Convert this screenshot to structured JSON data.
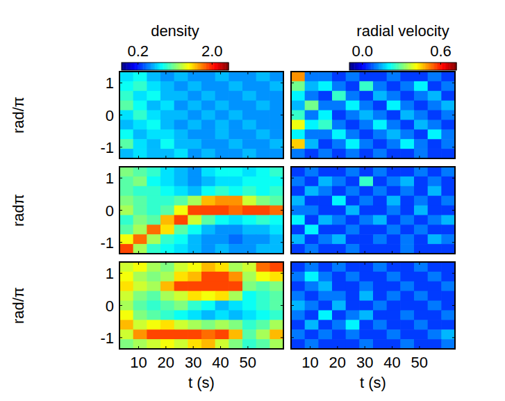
{
  "chart_data": [
    {
      "type": "heatmap",
      "ylabel": "rad/π",
      "tick_labels": "y",
      "xlim": [
        3,
        63
      ],
      "ylim": [
        -1.35,
        1.35
      ],
      "xticks": [
        10,
        20,
        30,
        40,
        50
      ],
      "yticks": [
        -1,
        0,
        1
      ],
      "colorbar": {
        "title": "density",
        "range": [
          -0.2,
          2.4
        ],
        "ticks": [
          0.2,
          {
            "value": 2,
            "label": "2.0"
          }
        ]
      },
      "x": [
        5.5,
        10.5,
        15.5,
        20.5,
        25.5,
        30.5,
        35.5,
        40.5,
        45.5,
        50.5,
        55.5,
        60.5
      ],
      "y": [
        1.2,
        0.9,
        0.6,
        0.3,
        0,
        -0.3,
        -0.6,
        -0.9,
        -1.2
      ],
      "cells": [
        [
          0.7,
          0.8,
          0.6,
          0.5,
          0.6,
          0.5,
          0.5,
          0.6,
          0.5,
          0.5,
          0.6,
          0.5
        ],
        [
          0.8,
          0.9,
          0.7,
          0.6,
          0.5,
          0.6,
          0.5,
          0.5,
          0.6,
          0.5,
          0.5,
          0.6
        ],
        [
          0.9,
          0.7,
          0.8,
          0.6,
          0.6,
          0.5,
          0.6,
          0.5,
          0.5,
          0.6,
          0.5,
          0.5
        ],
        [
          1.0,
          0.8,
          0.6,
          0.7,
          0.5,
          0.6,
          0.5,
          0.6,
          0.5,
          0.5,
          0.6,
          0.5
        ],
        [
          0.7,
          0.9,
          0.7,
          0.6,
          0.6,
          0.5,
          0.6,
          0.5,
          0.6,
          0.5,
          0.5,
          0.5
        ],
        [
          0.6,
          0.7,
          0.8,
          0.6,
          0.5,
          0.6,
          0.5,
          0.6,
          0.5,
          0.6,
          0.5,
          0.5
        ],
        [
          0.8,
          0.6,
          0.7,
          0.7,
          0.6,
          0.5,
          0.5,
          0.6,
          0.5,
          0.5,
          0.6,
          0.5
        ],
        [
          1.0,
          0.7,
          0.6,
          0.8,
          0.6,
          0.6,
          0.5,
          0.5,
          0.6,
          0.5,
          0.5,
          0.6
        ],
        [
          0.6,
          0.7,
          0.6,
          0.6,
          0.7,
          0.5,
          0.6,
          0.5,
          0.5,
          0.6,
          0.5,
          0.5
        ]
      ]
    },
    {
      "type": "heatmap",
      "tick_labels": false,
      "xlim": [
        3,
        63
      ],
      "ylim": [
        -1.35,
        1.35
      ],
      "xticks": [
        10,
        20,
        30,
        40,
        50
      ],
      "yticks": [
        -1,
        0,
        1
      ],
      "colorbar": {
        "title": "radial velocity",
        "range": [
          -0.1,
          0.72
        ],
        "ticks": [
          {
            "value": 0,
            "label": "0.0"
          },
          0.6
        ]
      },
      "x": [
        5.5,
        10.5,
        15.5,
        20.5,
        25.5,
        30.5,
        35.5,
        40.5,
        45.5,
        50.5,
        55.5,
        60.5
      ],
      "y": [
        1.2,
        0.9,
        0.6,
        0.3,
        0,
        -0.3,
        -0.6,
        -0.9,
        -1.2
      ],
      "cells": [
        [
          0.5,
          0.1,
          0.1,
          0.05,
          0.1,
          0.05,
          0.05,
          0.1,
          0.05,
          0.05,
          0.1,
          0.05
        ],
        [
          0.3,
          0.15,
          0.2,
          0.1,
          0.05,
          0.25,
          0.1,
          0.05,
          0.1,
          0.2,
          0.05,
          0.1
        ],
        [
          0.2,
          0.1,
          0.05,
          0.25,
          0.1,
          0.05,
          0.15,
          0.1,
          0.05,
          0.1,
          0.15,
          0.05
        ],
        [
          0.15,
          0.3,
          0.1,
          0.1,
          0.2,
          0.1,
          0.05,
          0.2,
          0.1,
          0.05,
          0.1,
          0.15
        ],
        [
          0.25,
          0.1,
          0.2,
          0.05,
          0.1,
          0.15,
          0.1,
          0.05,
          0.15,
          0.1,
          0.05,
          0.1
        ],
        [
          0.4,
          0.2,
          0.25,
          0.1,
          0.05,
          0.1,
          0.2,
          0.1,
          0.05,
          0.15,
          0.1,
          0.05
        ],
        [
          0.2,
          0.1,
          0.1,
          0.2,
          0.1,
          0.05,
          0.1,
          0.15,
          0.1,
          0.05,
          0.2,
          0.1
        ],
        [
          0.45,
          0.15,
          0.05,
          0.1,
          0.2,
          0.1,
          0.05,
          0.1,
          0.2,
          0.1,
          0.05,
          0.1
        ],
        [
          0.1,
          0.05,
          0.1,
          0.05,
          0.1,
          0.05,
          0.1,
          0.05,
          0.05,
          0.1,
          0.05,
          0.05
        ]
      ]
    },
    {
      "type": "heatmap",
      "ylabel": "radπ",
      "tick_labels": "y",
      "xlim": [
        3,
        63
      ],
      "ylim": [
        -1.35,
        1.35
      ],
      "xticks": [
        10,
        20,
        30,
        40,
        50
      ],
      "yticks": [
        -1,
        0,
        1
      ],
      "x": [
        5.5,
        10.5,
        15.5,
        20.5,
        25.5,
        30.5,
        35.5,
        40.5,
        45.5,
        50.5,
        55.5,
        60.5
      ],
      "y": [
        1.2,
        0.9,
        0.6,
        0.3,
        0,
        -0.3,
        -0.6,
        -0.9,
        -1.2
      ],
      "cells": [
        [
          1.1,
          1.0,
          0.9,
          0.7,
          0.6,
          0.5,
          0.7,
          0.8,
          0.8,
          0.7,
          0.8,
          0.9
        ],
        [
          1.0,
          1.1,
          0.8,
          0.7,
          0.6,
          0.5,
          0.6,
          0.7,
          0.7,
          0.8,
          0.8,
          0.8
        ],
        [
          1.0,
          0.9,
          0.9,
          0.8,
          0.7,
          0.6,
          0.8,
          0.9,
          0.8,
          0.9,
          0.8,
          0.9
        ],
        [
          1.1,
          1.0,
          0.9,
          0.9,
          1.0,
          1.2,
          1.6,
          1.7,
          1.7,
          1.3,
          1.1,
          1.0
        ],
        [
          1.2,
          1.0,
          0.9,
          1.0,
          1.4,
          1.9,
          1.9,
          1.9,
          1.8,
          1.9,
          1.9,
          1.8
        ],
        [
          0.9,
          1.1,
          1.0,
          1.6,
          1.9,
          1.3,
          1.0,
          0.8,
          0.7,
          0.8,
          0.9,
          0.8
        ],
        [
          1.0,
          1.2,
          1.8,
          1.5,
          1.0,
          0.8,
          0.6,
          0.5,
          0.5,
          0.6,
          0.6,
          0.7
        ],
        [
          1.4,
          1.8,
          1.2,
          0.9,
          0.8,
          0.6,
          0.5,
          0.5,
          0.4,
          0.5,
          0.5,
          0.6
        ],
        [
          1.9,
          1.2,
          0.9,
          0.8,
          0.7,
          0.6,
          0.5,
          0.6,
          0.5,
          0.5,
          0.6,
          0.6
        ]
      ]
    },
    {
      "type": "heatmap",
      "tick_labels": false,
      "xlim": [
        3,
        63
      ],
      "ylim": [
        -1.35,
        1.35
      ],
      "xticks": [
        10,
        20,
        30,
        40,
        50
      ],
      "yticks": [
        -1,
        0,
        1
      ],
      "x": [
        5.5,
        10.5,
        15.5,
        20.5,
        25.5,
        30.5,
        35.5,
        40.5,
        45.5,
        50.5,
        55.5,
        60.5
      ],
      "y": [
        1.2,
        0.9,
        0.6,
        0.3,
        0,
        -0.3,
        -0.6,
        -0.9,
        -1.2
      ],
      "cells": [
        [
          0.05,
          0.1,
          0.05,
          0.05,
          0.1,
          0.05,
          0.1,
          0.05,
          0.05,
          0.1,
          0.05,
          0.1
        ],
        [
          0.1,
          0.05,
          0.15,
          0.1,
          0.05,
          0.25,
          0.05,
          0.1,
          0.15,
          0.05,
          0.1,
          0.05
        ],
        [
          0.05,
          0.15,
          0.1,
          0.05,
          0.1,
          0.05,
          0.1,
          0.05,
          0.1,
          0.05,
          0.15,
          0.05
        ],
        [
          0.15,
          0.05,
          0.05,
          0.2,
          0.05,
          0.1,
          0.05,
          0.15,
          0.05,
          0.1,
          0.05,
          0.1
        ],
        [
          0.1,
          0.1,
          0.05,
          0.05,
          0.15,
          0.05,
          0.05,
          0.1,
          0.05,
          0.15,
          0.05,
          0.05
        ],
        [
          0.2,
          0.05,
          0.15,
          0.1,
          0.05,
          0.1,
          0.15,
          0.05,
          0.1,
          0.05,
          0.1,
          0.15
        ],
        [
          0.05,
          0.2,
          0.05,
          0.05,
          0.1,
          0.05,
          0.05,
          0.1,
          0.05,
          0.1,
          0.05,
          0.05
        ],
        [
          0.15,
          0.05,
          0.1,
          0.15,
          0.05,
          0.05,
          0.1,
          0.05,
          0.1,
          0.05,
          0.15,
          0.1
        ],
        [
          0.05,
          0.1,
          0.05,
          0.05,
          0.1,
          0.05,
          0.05,
          0.05,
          0.1,
          0.05,
          0.05,
          0.05
        ]
      ]
    },
    {
      "type": "heatmap",
      "ylabel": "rad/π",
      "xlabel": "t (s)",
      "tick_labels": true,
      "xlim": [
        3,
        63
      ],
      "ylim": [
        -1.35,
        1.35
      ],
      "xticks": [
        10,
        20,
        30,
        40,
        50
      ],
      "yticks": [
        -1,
        0,
        1
      ],
      "x": [
        5.5,
        10.5,
        15.5,
        20.5,
        25.5,
        30.5,
        35.5,
        40.5,
        45.5,
        50.5,
        55.5,
        60.5
      ],
      "y": [
        1.2,
        0.9,
        0.6,
        0.3,
        0,
        -0.3,
        -0.6,
        -0.9,
        -1.2
      ],
      "cells": [
        [
          1.3,
          1.4,
          1.2,
          1.1,
          1.3,
          1.4,
          1.6,
          1.5,
          1.2,
          1.3,
          1.8,
          1.9
        ],
        [
          1.4,
          1.2,
          1.1,
          1.2,
          1.5,
          1.6,
          1.9,
          1.9,
          1.7,
          1.2,
          1.4,
          1.5
        ],
        [
          1.5,
          1.3,
          1.2,
          1.6,
          1.9,
          1.9,
          1.9,
          1.9,
          1.9,
          1.1,
          1.0,
          1.1
        ],
        [
          1.3,
          1.1,
          1.0,
          1.2,
          1.3,
          1.5,
          1.4,
          1.5,
          1.2,
          0.8,
          0.9,
          1.0
        ],
        [
          1.2,
          1.0,
          0.9,
          1.0,
          1.1,
          0.9,
          0.8,
          0.6,
          0.7,
          0.8,
          0.9,
          1.0
        ],
        [
          1.4,
          1.1,
          1.0,
          0.9,
          0.8,
          0.7,
          0.6,
          0.7,
          0.6,
          0.7,
          0.8,
          0.9
        ],
        [
          1.6,
          1.3,
          1.4,
          1.5,
          1.3,
          1.2,
          1.1,
          1.2,
          1.1,
          0.9,
          1.0,
          1.2
        ],
        [
          1.3,
          1.7,
          1.9,
          1.9,
          1.9,
          1.9,
          1.8,
          1.9,
          1.6,
          1.0,
          1.2,
          1.6
        ],
        [
          1.1,
          1.2,
          1.3,
          1.4,
          1.3,
          1.5,
          1.6,
          1.3,
          1.1,
          0.9,
          1.0,
          1.2
        ]
      ]
    },
    {
      "type": "heatmap",
      "xlabel": "t (s)",
      "tick_labels": "x",
      "xlim": [
        3,
        63
      ],
      "ylim": [
        -1.35,
        1.35
      ],
      "xticks": [
        10,
        20,
        30,
        40,
        50
      ],
      "yticks": [
        -1,
        0,
        1
      ],
      "x": [
        5.5,
        10.5,
        15.5,
        20.5,
        25.5,
        30.5,
        35.5,
        40.5,
        45.5,
        50.5,
        55.5,
        60.5
      ],
      "y": [
        1.2,
        0.9,
        0.6,
        0.3,
        0,
        -0.3,
        -0.6,
        -0.9,
        -1.2
      ],
      "cells": [
        [
          0.05,
          0.1,
          0.05,
          0.1,
          0.05,
          0.05,
          0.1,
          0.05,
          0.05,
          0.1,
          0.05,
          0.05
        ],
        [
          0.1,
          0.2,
          0.1,
          0.05,
          0.1,
          0.05,
          0.05,
          0.1,
          0.05,
          0.05,
          0.1,
          0.05
        ],
        [
          0.05,
          0.1,
          0.15,
          0.05,
          0.05,
          0.1,
          0.05,
          0.05,
          0.1,
          0.05,
          0.05,
          0.1
        ],
        [
          0.1,
          0.05,
          0.1,
          0.1,
          0.05,
          0.15,
          0.05,
          0.1,
          0.05,
          0.1,
          0.05,
          0.05
        ],
        [
          0.15,
          0.1,
          0.05,
          0.15,
          0.05,
          0.05,
          0.1,
          0.05,
          0.05,
          0.05,
          0.1,
          0.05
        ],
        [
          0.1,
          0.05,
          0.2,
          0.05,
          0.1,
          0.15,
          0.05,
          0.05,
          0.1,
          0.05,
          0.05,
          0.1
        ],
        [
          0.05,
          0.15,
          0.05,
          0.1,
          0.2,
          0.05,
          0.1,
          0.05,
          0.05,
          0.1,
          0.05,
          0.05
        ],
        [
          0.1,
          0.05,
          0.1,
          0.05,
          0.1,
          0.05,
          0.05,
          0.1,
          0.05,
          0.05,
          0.1,
          0.15
        ],
        [
          0.05,
          0.1,
          0.05,
          0.05,
          0.05,
          0.1,
          0.05,
          0.05,
          0.1,
          0.05,
          0.05,
          0.1
        ]
      ]
    }
  ]
}
